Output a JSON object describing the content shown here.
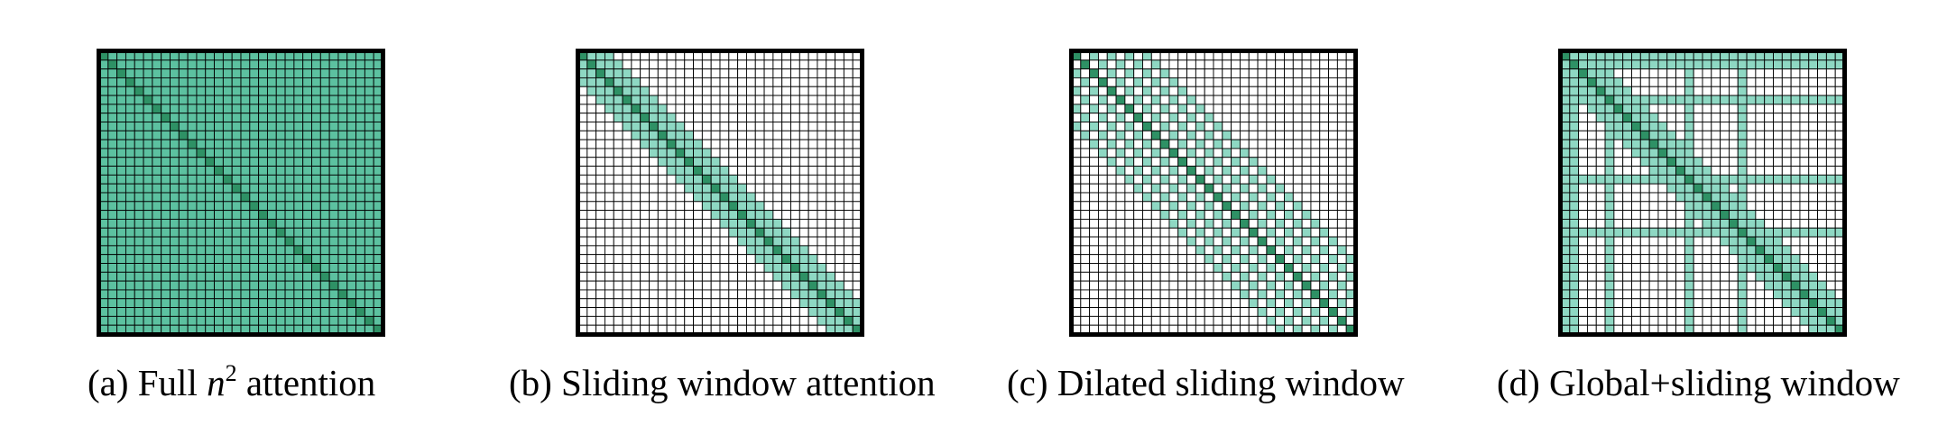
{
  "figure": {
    "grid_size": 32,
    "colors": {
      "attended": "#5cc1a0",
      "diagonal": "#2e9165",
      "light_attended": "#8ed8c3",
      "empty": "#ffffff",
      "grid_line": "#000000",
      "border": "#000000"
    },
    "panels": [
      {
        "id": "a",
        "pattern": "full",
        "caption_prefix": "(a) Full ",
        "caption_math": "n",
        "caption_sup": "2",
        "caption_suffix": " attention"
      },
      {
        "id": "b",
        "pattern": "sliding_window",
        "window_half_width": 3,
        "caption": "(b) Sliding window attention"
      },
      {
        "id": "c",
        "pattern": "dilated_sliding_window",
        "dilation": 2,
        "window_half_count": 4,
        "caption": "(c) Dilated sliding window"
      },
      {
        "id": "d",
        "pattern": "global_sliding_window",
        "window_half_width": 3,
        "global_indices": [
          0,
          1,
          5,
          14,
          20
        ],
        "caption": "(d) Global+sliding window"
      }
    ]
  }
}
